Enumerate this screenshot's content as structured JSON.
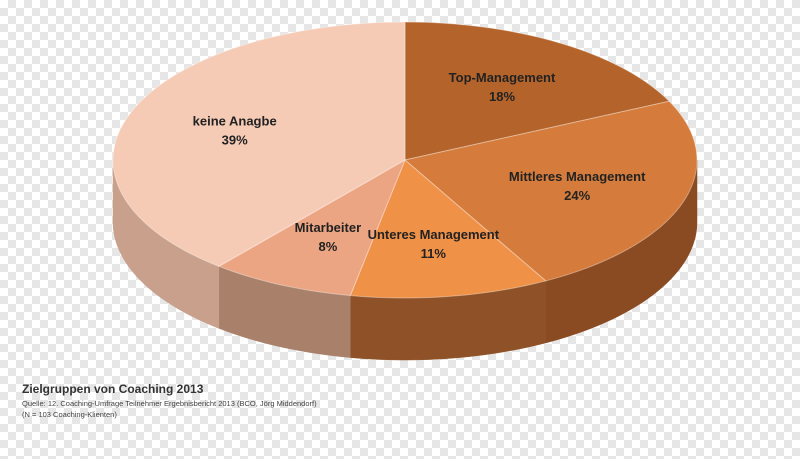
{
  "chart_data": {
    "type": "pie",
    "title": "Zielgruppen von Coaching 2013",
    "source": "Quelle: 12. Coaching-Umfrage Teilnehmer Ergebnisbericht 2013 (BCO, Jörg Middendorf)",
    "note": "(N = 103 Coaching-Klienten)",
    "categories": [
      "Top-Management",
      "Mittleres Management",
      "Unteres Management",
      "Mitarbeiter",
      "keine Anagbe"
    ],
    "values": [
      18,
      24,
      11,
      8,
      39
    ],
    "value_labels": [
      "18%",
      "24%",
      "11%",
      "8%",
      "39%"
    ],
    "colors": [
      "#b4642a",
      "#d57c3c",
      "#f09148",
      "#eca582",
      "#f6cbb6"
    ],
    "side_colors": [
      "#6e3816",
      "#8a4a22",
      "#8f5228",
      "#a9806a",
      "#c9a08c"
    ]
  }
}
